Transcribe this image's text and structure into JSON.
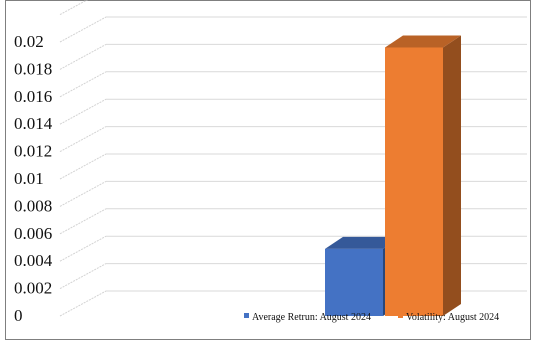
{
  "chart_data": {
    "type": "bar",
    "title": "",
    "xlabel": "",
    "ylabel": "",
    "ylim": [
      0,
      0.022
    ],
    "y_ticks": [
      "0",
      "0.002",
      "0.004",
      "0.006",
      "0.008",
      "0.01",
      "0.012",
      "0.014",
      "0.016",
      "0.018",
      "0.02"
    ],
    "grid": true,
    "legend_position": "bottom-right",
    "series": [
      {
        "name": "Average Retrun: August 2024",
        "value": 0.0049,
        "color": "#4472C4"
      },
      {
        "name": "Volatility: August 2024",
        "value": 0.0196,
        "color": "#ED7D31"
      }
    ]
  }
}
